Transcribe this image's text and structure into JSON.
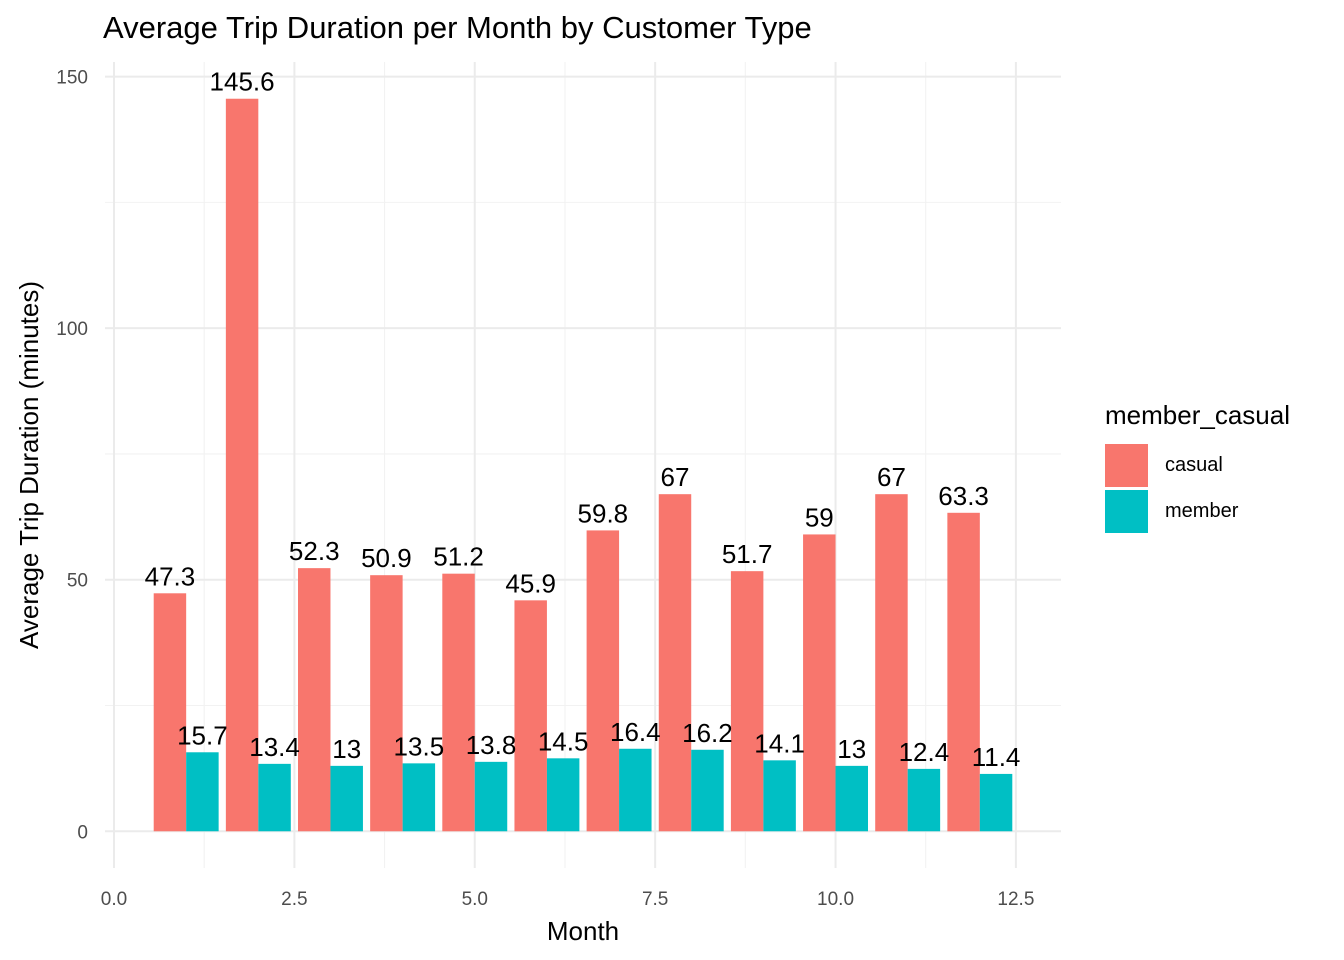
{
  "chart_data": {
    "type": "bar",
    "title": "Average Trip Duration per Month by Customer Type",
    "xlabel": "Month",
    "ylabel": "Average Trip Duration (minutes)",
    "x": [
      1,
      2,
      3,
      4,
      5,
      6,
      7,
      8,
      9,
      10,
      11,
      12
    ],
    "xlim": [
      -0.125,
      13.125
    ],
    "ylim": [
      -7.3,
      152.9
    ],
    "x_ticks": [
      "0.0",
      "2.5",
      "5.0",
      "7.5",
      "10.0",
      "12.5"
    ],
    "y_ticks": [
      "0",
      "50",
      "100",
      "150"
    ],
    "grid": true,
    "legend_position": "right",
    "legend_title": "member_casual",
    "series": [
      {
        "name": "casual",
        "color": "#F8766D",
        "values": [
          47.3,
          145.6,
          52.3,
          50.9,
          51.2,
          45.9,
          59.8,
          67,
          51.7,
          59,
          67,
          63.3
        ],
        "labels": [
          "47.3",
          "145.6",
          "52.3",
          "50.9",
          "51.2",
          "45.9",
          "59.8",
          "67",
          "51.7",
          "59",
          "67",
          "63.3"
        ]
      },
      {
        "name": "member",
        "color": "#00BFC4",
        "values": [
          15.7,
          13.4,
          13,
          13.5,
          13.8,
          14.5,
          16.4,
          16.2,
          14.1,
          13,
          12.4,
          11.4
        ],
        "labels": [
          "15.7",
          "13.4",
          "13",
          "13.5",
          "13.8",
          "14.5",
          "16.4",
          "16.2",
          "14.1",
          "13",
          "12.4",
          "11.4"
        ]
      }
    ]
  }
}
